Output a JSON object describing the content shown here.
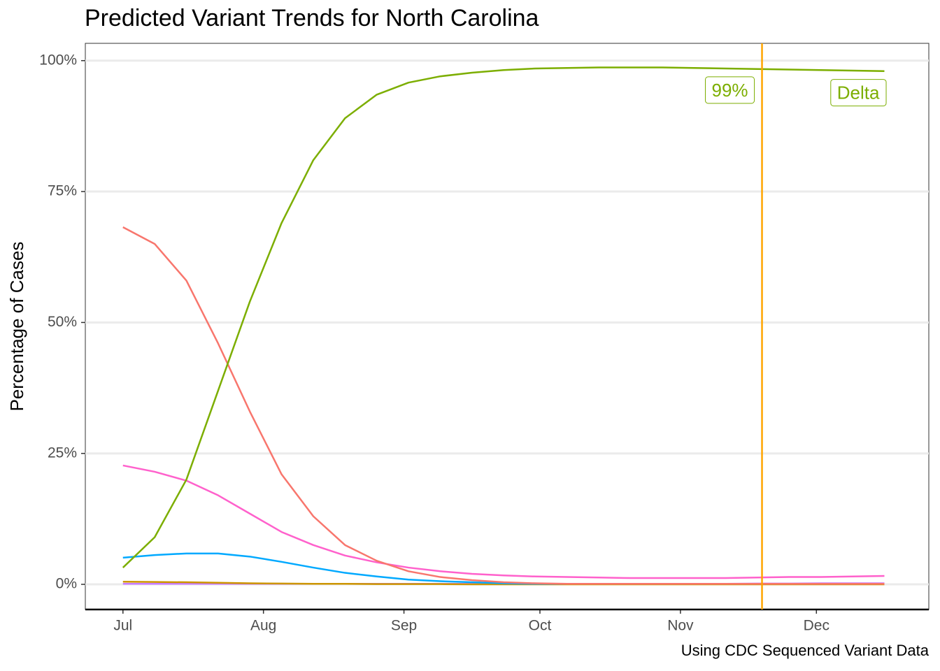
{
  "chart_data": {
    "type": "line",
    "title": "Predicted Variant Trends for North Carolina",
    "y_label": "Percentage of Cases",
    "caption": "Using CDC Sequenced Variant Data",
    "x": [
      0,
      7,
      14,
      21,
      28,
      35,
      42,
      49,
      56,
      63,
      70,
      77,
      84,
      91,
      98,
      105,
      112,
      119,
      126,
      133,
      140,
      147,
      154,
      161,
      168
    ],
    "xlim": [
      -8.3,
      177.8
    ],
    "xticks": [
      {
        "value": 0,
        "label": "Jul"
      },
      {
        "value": 31,
        "label": "Aug"
      },
      {
        "value": 62,
        "label": "Sep"
      },
      {
        "value": 92,
        "label": "Oct"
      },
      {
        "value": 123,
        "label": "Nov"
      },
      {
        "value": 153,
        "label": "Dec"
      }
    ],
    "ylim": [
      -4.8,
      103.3
    ],
    "yticks": [
      {
        "value": 0,
        "label": "0%"
      },
      {
        "value": 25,
        "label": "25%"
      },
      {
        "value": 50,
        "label": "50%"
      },
      {
        "value": 75,
        "label": "75%"
      },
      {
        "value": 100,
        "label": "100%"
      }
    ],
    "grid": true,
    "series": [
      {
        "name": "Delta",
        "color": "#7CAE00",
        "values": [
          3.2,
          9,
          20,
          37,
          54,
          69,
          81,
          89,
          93.5,
          95.8,
          97,
          97.7,
          98.2,
          98.5,
          98.6,
          98.7,
          98.7,
          98.7,
          98.6,
          98.5,
          98.4,
          98.3,
          98.2,
          98.1,
          98.0
        ]
      },
      {
        "color": "#F8766D",
        "values": [
          68.2,
          65,
          58,
          46,
          33,
          21,
          13,
          7.5,
          4.5,
          2.5,
          1.4,
          0.8,
          0.4,
          0.2,
          0.1,
          0.1,
          0.1,
          0.1,
          0.1,
          0.1,
          0.1,
          0.1,
          0.1,
          0.1,
          0.1
        ]
      },
      {
        "color": "#FF61CC",
        "values": [
          22.7,
          21.5,
          19.8,
          17,
          13.5,
          10,
          7.5,
          5.5,
          4.2,
          3.2,
          2.5,
          2.0,
          1.7,
          1.5,
          1.4,
          1.3,
          1.2,
          1.2,
          1.2,
          1.2,
          1.3,
          1.4,
          1.4,
          1.5,
          1.6
        ]
      },
      {
        "color": "#00A9FF",
        "values": [
          5.1,
          5.6,
          5.9,
          5.9,
          5.3,
          4.3,
          3.2,
          2.2,
          1.5,
          0.9,
          0.6,
          0.4,
          0.2,
          0.1,
          0.1,
          0.1,
          0.1,
          0.1,
          0.1,
          0.1,
          0.1,
          0.1,
          0.1,
          0.1,
          0.1
        ]
      },
      {
        "color": "#CD9600",
        "values": [
          0.5,
          0.45,
          0.4,
          0.3,
          0.2,
          0.15,
          0.1,
          0.1,
          0.05,
          0.05,
          0.05,
          0,
          0,
          0,
          0,
          0,
          0,
          0,
          0,
          0,
          0,
          0,
          0,
          0,
          0
        ]
      },
      {
        "color": "#C77CFF",
        "values": [
          0.1,
          0.1,
          0.1,
          0.1,
          0.1,
          0.1,
          0.1,
          0.1,
          0.1,
          0.1,
          0.1,
          0.1,
          0.1,
          0.1,
          0.1,
          0.1,
          0.1,
          0.1,
          0.1,
          0.1,
          0.15,
          0.15,
          0.2,
          0.2,
          0.2
        ]
      }
    ],
    "vline": {
      "x": 141,
      "color": "#FFA500",
      "label": "99%"
    }
  }
}
